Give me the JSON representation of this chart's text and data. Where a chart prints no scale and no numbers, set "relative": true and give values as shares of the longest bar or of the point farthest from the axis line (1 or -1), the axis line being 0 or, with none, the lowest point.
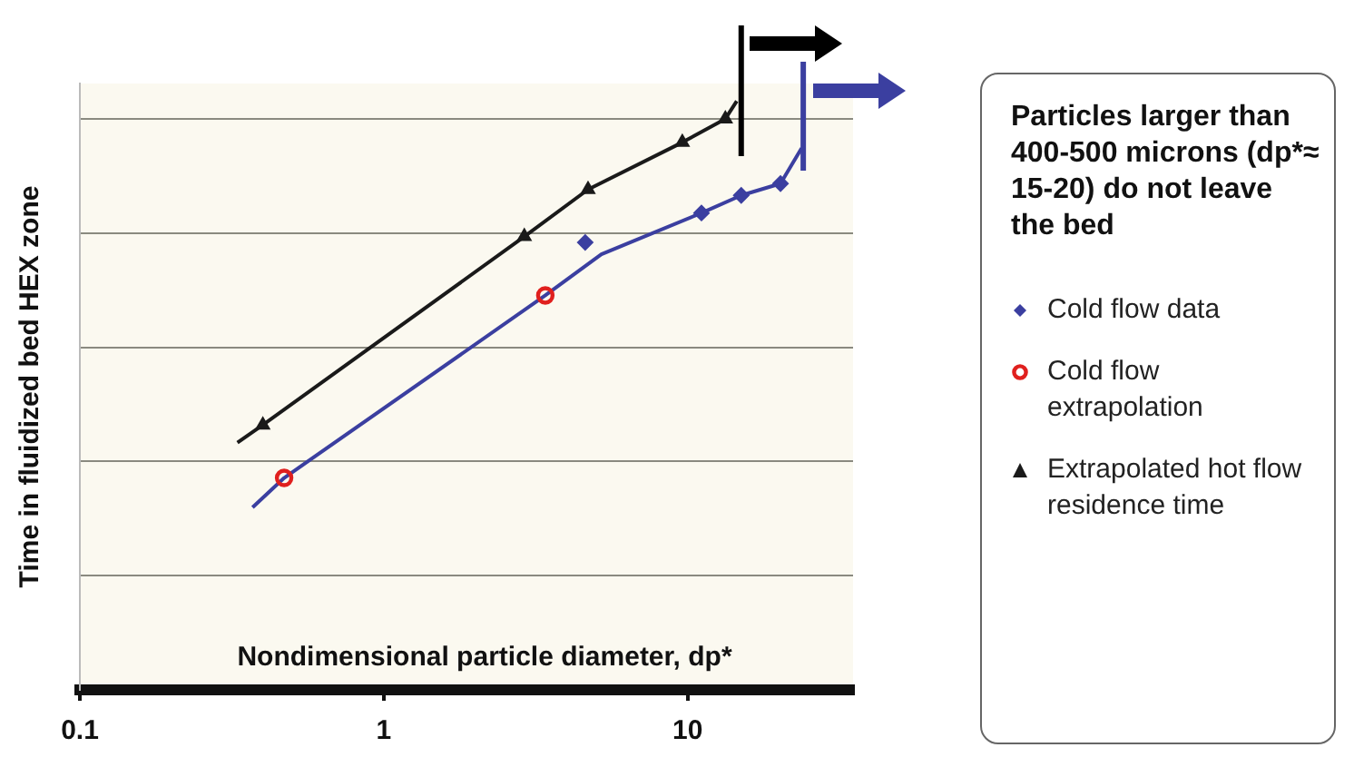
{
  "chart_data": {
    "type": "line",
    "relative": true,
    "log": "x",
    "grid": "y",
    "legend": "right",
    "xlabel": "Nondimensional particle diameter, dp*",
    "ylabel": "Time in fluidized bed HEX zone",
    "xlim": [
      0.1,
      35
    ],
    "xticks": [
      0.1,
      1,
      10
    ],
    "annotations": [
      "Particles larger than 400-500 microns (dp*≈ 15-20) do not leave the bed"
    ],
    "ref_lines": [
      {
        "axis": "x",
        "value": 15,
        "color": "#000000"
      },
      {
        "axis": "x",
        "value": 24,
        "color": "#3b3fa0"
      }
    ],
    "series": [
      {
        "type": "line",
        "color": "#1a1a1a",
        "marker": "none",
        "x": [
          0.33,
          0.4,
          2.9,
          4.7,
          9.6,
          13.3,
          14.5
        ],
        "values": [
          0.42,
          0.45,
          0.77,
          0.85,
          0.93,
          0.97,
          1.0
        ]
      },
      {
        "type": "line",
        "color": "#3b3fa0",
        "marker": "none",
        "x": [
          0.37,
          0.47,
          3.4,
          5.2,
          11.1,
          15,
          20.2,
          23.7
        ],
        "values": [
          0.31,
          0.36,
          0.67,
          0.74,
          0.81,
          0.84,
          0.86,
          0.92
        ]
      },
      {
        "type": "scatter",
        "name": "Cold flow data",
        "color": "#3b3fa0",
        "marker": "diamond",
        "x": [
          4.6,
          11.1,
          15,
          20.2
        ],
        "values": [
          0.76,
          0.81,
          0.84,
          0.86
        ]
      },
      {
        "type": "scatter",
        "name": "Cold flow extrapolation",
        "color": "#e0201e",
        "marker": "circle",
        "x": [
          0.47,
          3.4
        ],
        "values": [
          0.36,
          0.67
        ]
      },
      {
        "type": "scatter",
        "name": "Extrapolated hot flow residence time",
        "color": "#1a1a1a",
        "marker": "triangle",
        "x": [
          0.4,
          2.9,
          4.7,
          9.6,
          13.3
        ],
        "values": [
          0.45,
          0.77,
          0.85,
          0.93,
          0.97
        ]
      }
    ]
  }
}
